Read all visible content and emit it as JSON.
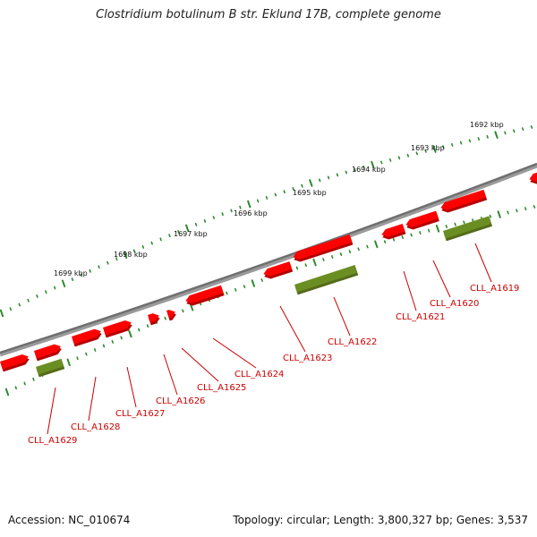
{
  "title": "Clostridium botulinum B str. Eklund 17B, complete genome",
  "footer": {
    "accession": "Accession: NC_010674",
    "summary": "Topology: circular; Length: 3,800,327 bp; Genes: 3,537"
  },
  "colors": {
    "backbone": "#777777",
    "gene": "#ff0000",
    "gene_dark": "#b30000",
    "rna": "#6b8e23",
    "tick": "#2e8b2e",
    "label": "#cc0000"
  },
  "scale_labels": [
    "1699 kbp",
    "1698 kbp",
    "1697 kbp",
    "1696 kbp",
    "1695 kbp",
    "1694 kbp",
    "1693 kbp",
    "1692 kbp"
  ],
  "genes": [
    {
      "label": "CLL_A1629"
    },
    {
      "label": "CLL_A1628"
    },
    {
      "label": "CLL_A1627"
    },
    {
      "label": "CLL_A1626"
    },
    {
      "label": "CLL_A1625"
    },
    {
      "label": "CLL_A1624"
    },
    {
      "label": "CLL_A1623"
    },
    {
      "label": "CLL_A1622"
    },
    {
      "label": "CLL_A1621"
    },
    {
      "label": "CLL_A1620"
    },
    {
      "label": "CLL_A1619"
    }
  ]
}
